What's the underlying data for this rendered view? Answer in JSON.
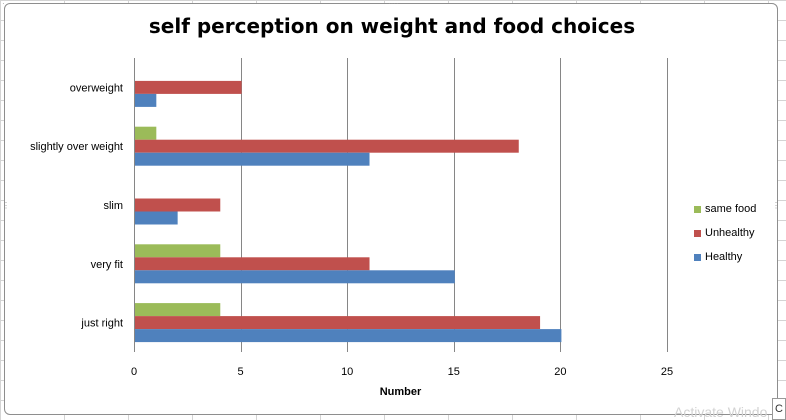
{
  "chart_data": {
    "type": "bar",
    "orientation": "horizontal",
    "title": "self perception on weight and food choices",
    "xlabel": "Number",
    "ylabel": "",
    "xlim": [
      0,
      25
    ],
    "xticks": [
      0,
      5,
      10,
      15,
      20,
      25
    ],
    "categories": [
      "overweight",
      "slightly over weight",
      "slim",
      "very fit",
      "just right"
    ],
    "series": [
      {
        "name": "same food",
        "color": "#9bbb59",
        "values": [
          0,
          1,
          0,
          4,
          4
        ]
      },
      {
        "name": "Unhealthy",
        "color": "#c0504d",
        "values": [
          5,
          18,
          4,
          11,
          19
        ]
      },
      {
        "name": "Healthy",
        "color": "#4f81bd",
        "values": [
          1,
          11,
          2,
          15,
          20
        ]
      }
    ],
    "legend_entries": [
      "same food",
      "Unhealthy",
      "Healthy"
    ],
    "legend_position": "right",
    "grid": true
  },
  "overlay": {
    "activate_text": "Activate Windo",
    "corner_button_label": "C"
  }
}
